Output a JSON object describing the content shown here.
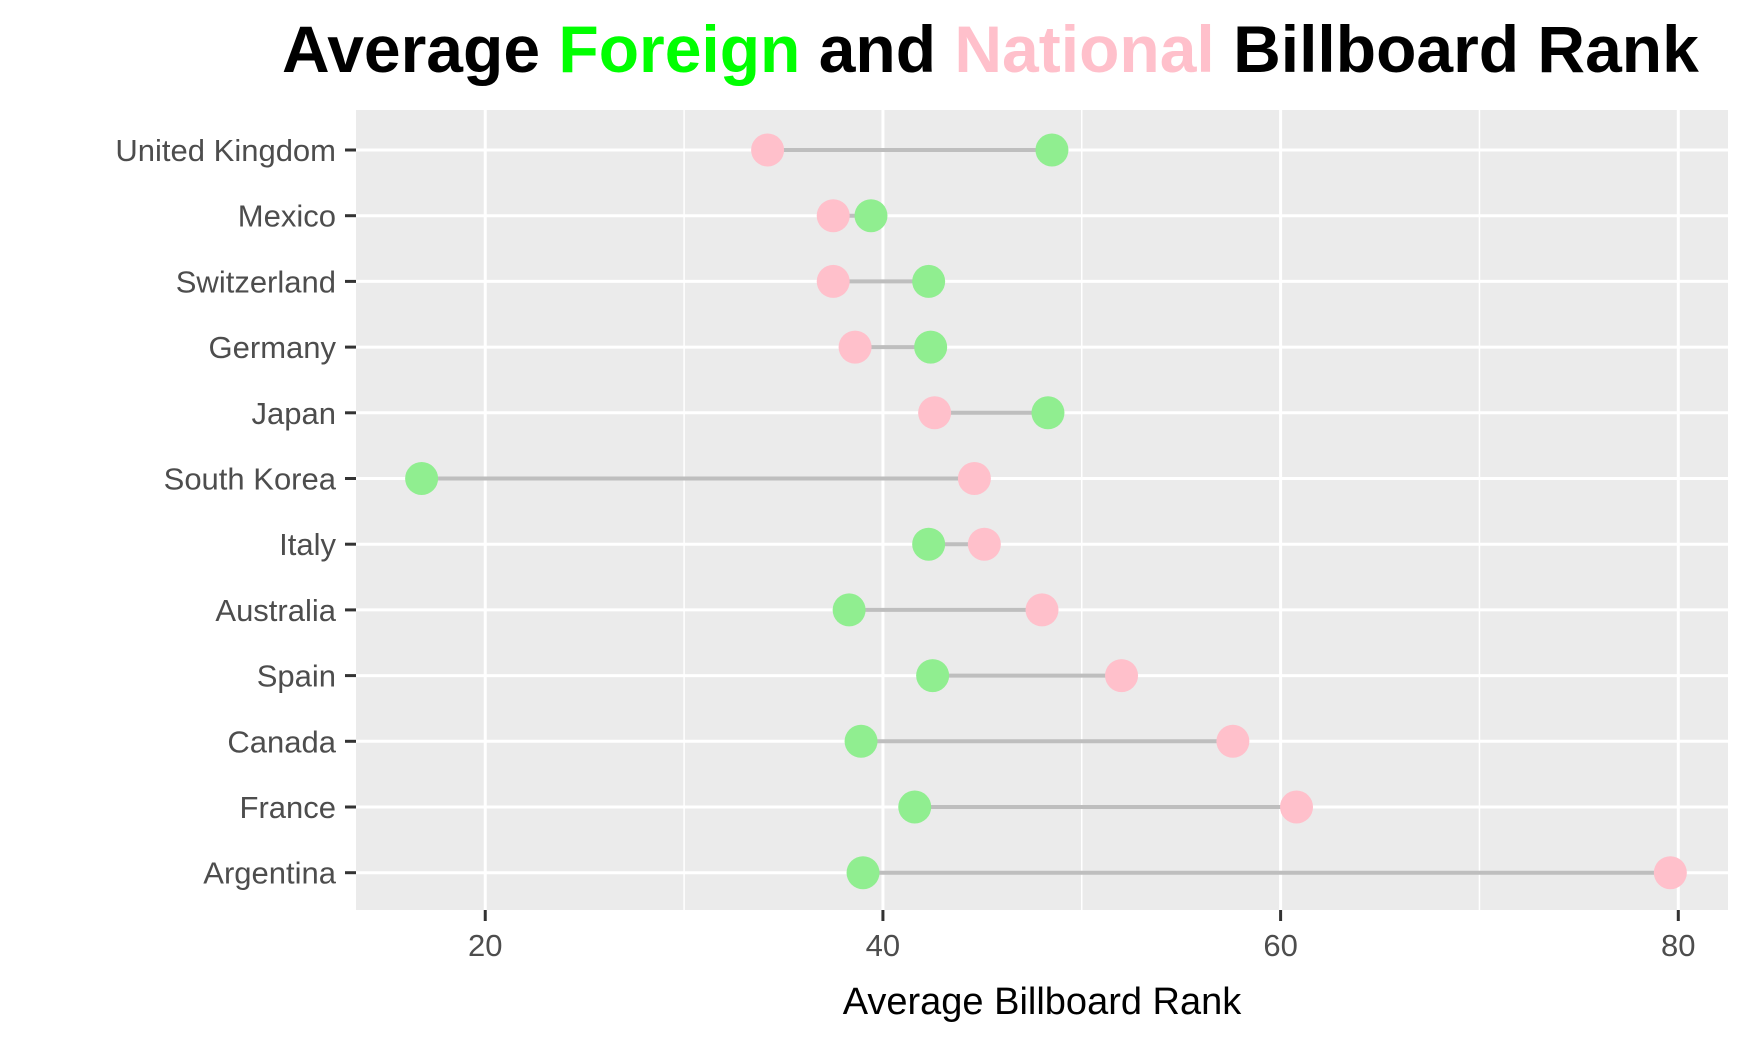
{
  "chart_data": {
    "type": "dumbbell",
    "title": {
      "parts": [
        {
          "text": "Average ",
          "color": "#000000"
        },
        {
          "text": "Foreign",
          "color": "#00ff00"
        },
        {
          "text": " and ",
          "color": "#000000"
        },
        {
          "text": "National",
          "color": "#ffc0cb"
        },
        {
          "text": " Billboard Rank",
          "color": "#000000"
        }
      ]
    },
    "xlabel": "Average Billboard Rank",
    "ylabel": "",
    "xlim": [
      13.5,
      82.5
    ],
    "x_ticks": [
      20,
      40,
      60,
      80
    ],
    "x_minor_ticks": [
      30,
      50,
      70
    ],
    "grid": true,
    "colors": {
      "foreign": "#90ee90",
      "national": "#ffc0cb",
      "segment": "#bebebe",
      "panel": "#ebebeb",
      "gridline": "#ffffff"
    },
    "categories": [
      "United Kingdom",
      "Mexico",
      "Switzerland",
      "Germany",
      "Japan",
      "South Korea",
      "Italy",
      "Australia",
      "Spain",
      "Canada",
      "France",
      "Argentina"
    ],
    "series": [
      {
        "name": "Foreign",
        "values": [
          48.5,
          39.4,
          42.3,
          42.4,
          48.3,
          16.8,
          42.3,
          38.3,
          42.5,
          38.9,
          41.6,
          39.0
        ]
      },
      {
        "name": "National",
        "values": [
          34.2,
          37.5,
          37.5,
          38.6,
          42.6,
          44.6,
          45.1,
          48.0,
          52.0,
          57.6,
          60.8,
          79.6
        ]
      }
    ]
  }
}
